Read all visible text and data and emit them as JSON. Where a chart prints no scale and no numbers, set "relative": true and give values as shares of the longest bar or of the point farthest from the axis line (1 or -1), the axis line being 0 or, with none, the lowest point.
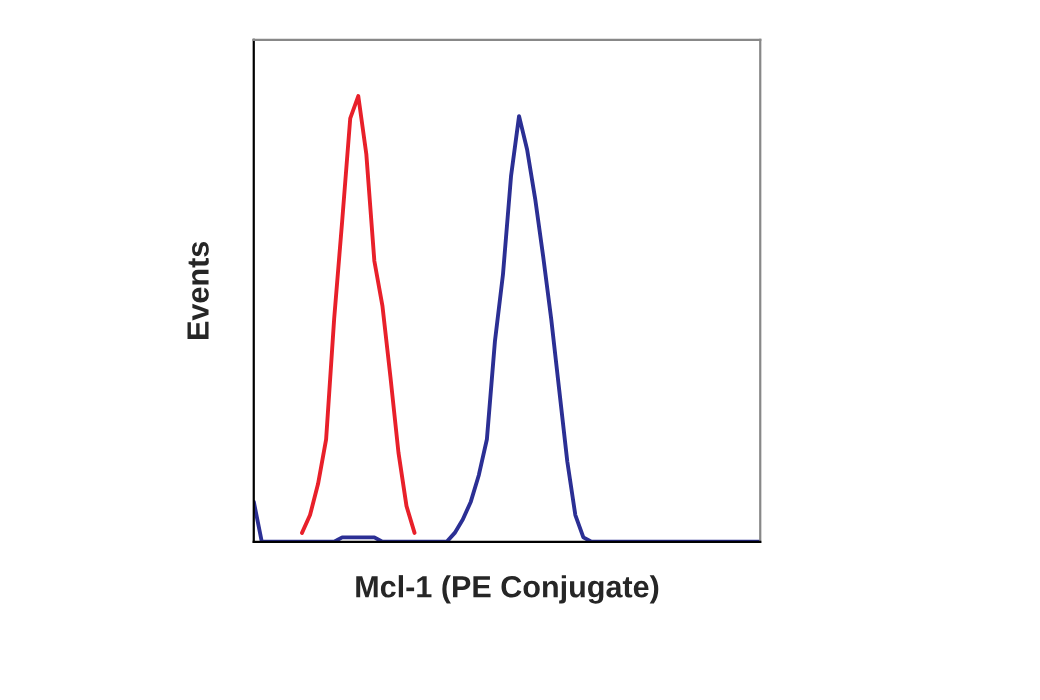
{
  "chart_data": {
    "type": "line",
    "relative": true,
    "xlabel": "Mcl-1 (PE Conjugate)",
    "ylabel": "Events",
    "tick_labels": false,
    "grid": false,
    "legend": false,
    "marker": "none",
    "line_style": "solid",
    "categories": [
      null,
      null,
      null,
      null,
      null,
      null,
      null,
      null,
      null,
      null,
      null,
      null,
      null,
      null,
      null,
      null,
      null,
      null,
      null,
      null,
      null,
      null,
      null,
      null,
      null,
      null,
      null,
      null,
      null,
      null,
      null,
      null,
      null,
      null,
      null,
      null,
      null,
      null,
      null,
      null,
      null,
      null,
      null,
      null,
      null,
      null,
      null,
      null,
      null,
      null,
      null,
      null,
      null,
      null,
      null,
      null,
      null,
      null,
      null,
      null,
      null,
      null,
      null,
      null
    ],
    "series": [
      {
        "color": "#e8202a",
        "values": [
          null,
          null,
          null,
          null,
          null,
          null,
          0.02,
          0.06,
          0.13,
          0.23,
          0.5,
          0.72,
          0.95,
          1,
          0.87,
          0.63,
          0.53,
          0.37,
          0.2,
          0.08,
          0.02,
          null,
          null,
          null,
          null,
          null,
          null,
          null,
          null,
          null,
          null,
          null,
          null,
          null,
          null,
          null,
          null,
          null,
          null,
          null,
          null,
          null,
          null,
          null,
          null,
          null,
          null,
          null,
          null,
          null,
          null,
          null,
          null,
          null,
          null,
          null,
          null,
          null,
          null,
          null,
          null,
          null,
          null,
          null
        ]
      },
      {
        "color": "#2b2f94",
        "values": [
          0.09,
          0,
          0,
          0,
          0,
          0,
          0,
          0,
          0,
          0,
          0,
          0.01,
          0.01,
          0.01,
          0.01,
          0.01,
          0,
          0,
          0,
          0,
          0,
          0,
          0,
          0,
          0,
          0.02,
          0.05,
          0.09,
          0.15,
          0.23,
          0.45,
          0.6,
          0.82,
          0.955,
          0.88,
          0.77,
          0.64,
          0.5,
          0.34,
          0.18,
          0.06,
          0.01,
          0,
          0,
          0,
          0,
          0,
          0,
          0,
          0,
          0,
          0,
          0,
          0,
          0,
          0,
          0,
          0,
          0,
          0,
          0,
          0,
          0,
          0
        ]
      }
    ]
  }
}
